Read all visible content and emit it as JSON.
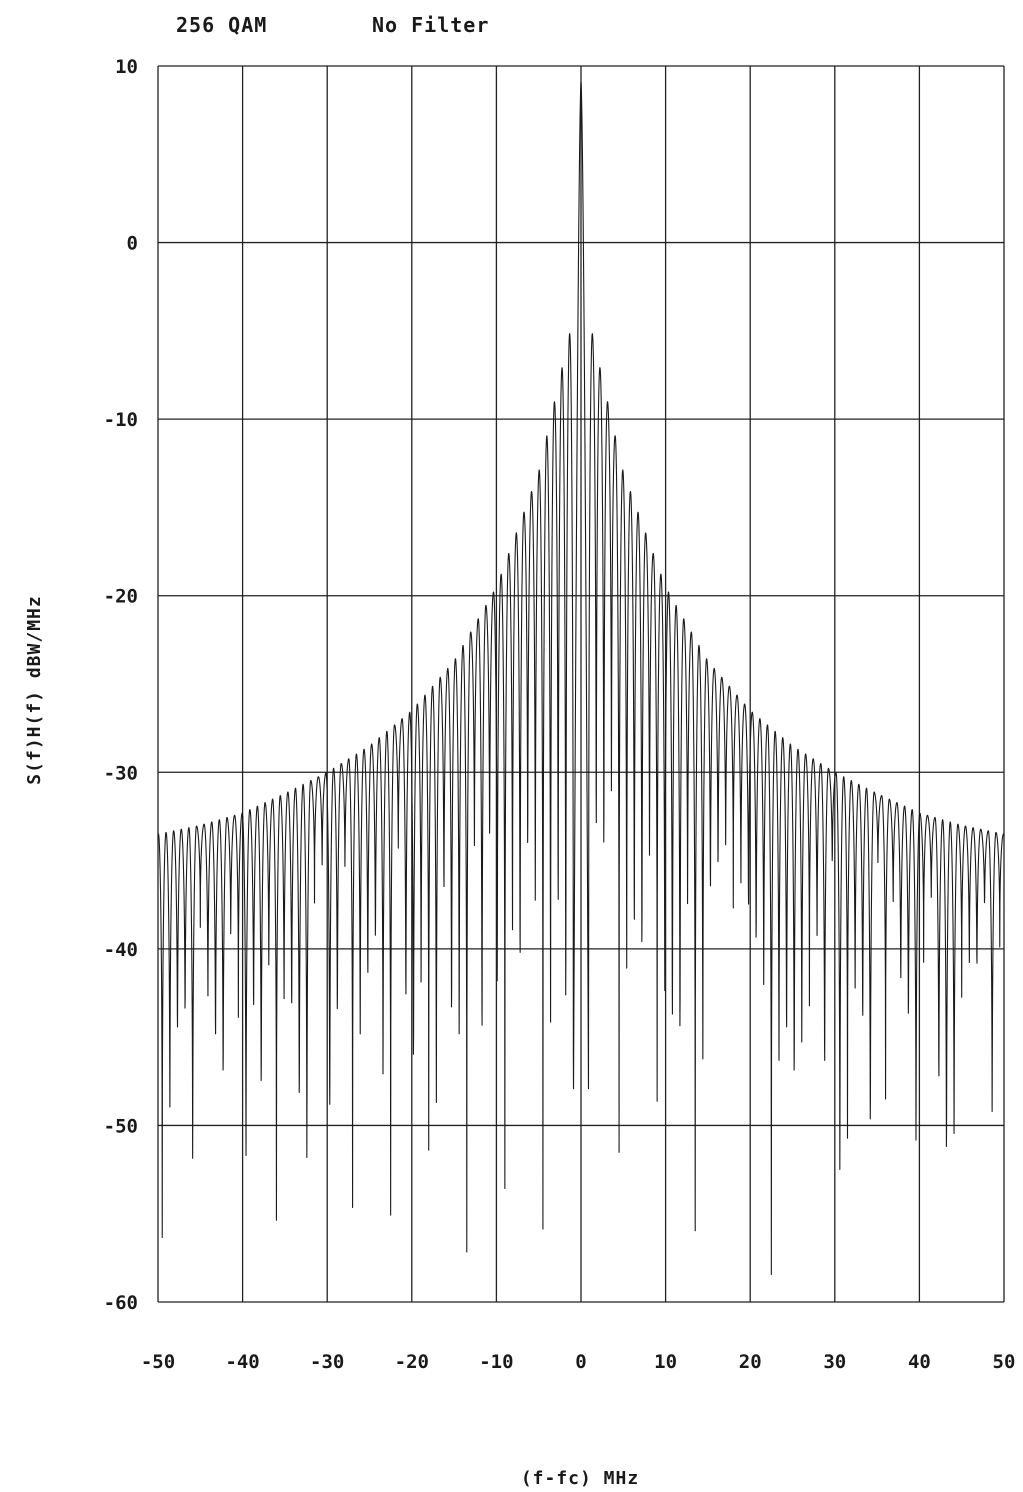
{
  "header": {
    "modulation": "256 QAM",
    "filter": "No Filter"
  },
  "colors": {
    "background": "#ffffff",
    "ink": "#1a1a1a",
    "grid": "#222222"
  },
  "chart_data": {
    "type": "line",
    "title": "",
    "header_labels": [
      "256 QAM",
      "No Filter"
    ],
    "xlabel": "(f-fc) MHz",
    "ylabel": "S(f)H(f) dBW/MHz",
    "xlim": [
      -50,
      50
    ],
    "ylim": [
      -60,
      10
    ],
    "x_ticks": [
      -50,
      -40,
      -30,
      -20,
      -10,
      0,
      10,
      20,
      30,
      40,
      50
    ],
    "y_ticks": [
      10,
      0,
      -10,
      -20,
      -30,
      -40,
      -50,
      -60
    ],
    "x_tick_labels": [
      "-50",
      "-40",
      "-30",
      "-20",
      "-10",
      "0",
      "10",
      "20",
      "30",
      "40",
      "50"
    ],
    "y_tick_labels": [
      "10",
      "0",
      "-10",
      "-20",
      "-30",
      "-40",
      "-50",
      "-60"
    ],
    "grid": true,
    "legend": "none",
    "series": [
      {
        "main_lobe_peak_db": 9.1,
        "lobe_spacing_mhz": 0.9,
        "envelope": {
          "x_abs_mhz": [
            0.9,
            5,
            10,
            15,
            20,
            25,
            30,
            35,
            40,
            45,
            50
          ],
          "peak_db": [
            -4.2,
            -13,
            -19.5,
            -23.7,
            -26.5,
            -28.5,
            -30,
            -31.2,
            -32.3,
            -33,
            -33.5
          ]
        },
        "null_depth_range_db": [
          -59,
          -36
        ]
      }
    ]
  }
}
